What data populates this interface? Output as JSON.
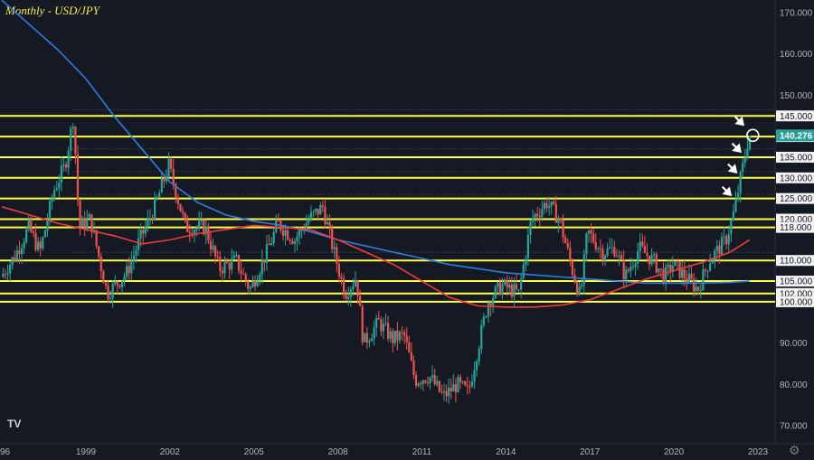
{
  "chart_data": {
    "type": "candlestick",
    "title": "Monthly - USD/JPY",
    "symbol": "USD/JPY",
    "interval": "Monthly",
    "ylim": [
      67,
      176
    ],
    "xlim": [
      1996.0,
      2024.0
    ],
    "x_ticks": [
      "96",
      "1999",
      "2002",
      "2005",
      "2008",
      "2011",
      "2014",
      "2017",
      "2020",
      "2023"
    ],
    "x_tick_years": [
      1996,
      1999,
      2002,
      2005,
      2008,
      2011,
      2014,
      2017,
      2020,
      2023
    ],
    "y_ticks": [
      70,
      80,
      90,
      150,
      160,
      170
    ],
    "y_tick_labels": [
      "70.000",
      "80.000",
      "90.000",
      "150.000",
      "160.000",
      "170.000"
    ],
    "levels": [
      145,
      140,
      135,
      130,
      125,
      120,
      118,
      110,
      105,
      102,
      100
    ],
    "level_labels": [
      "145.000",
      "140.000",
      "135.000",
      "130.000",
      "125.000",
      "120.000",
      "118.000",
      "110.000",
      "105.000",
      "102.000",
      "100.000"
    ],
    "current_price": 140.276,
    "current_price_label": "140.276",
    "price_path": [
      [
        1996.0,
        106
      ],
      [
        1996.5,
        111
      ],
      [
        1997.0,
        118
      ],
      [
        1997.4,
        112
      ],
      [
        1997.9,
        127
      ],
      [
        1998.3,
        133
      ],
      [
        1998.6,
        145
      ],
      [
        1998.8,
        118
      ],
      [
        1999.2,
        120
      ],
      [
        1999.8,
        102
      ],
      [
        2000.5,
        107
      ],
      [
        2000.9,
        114
      ],
      [
        2001.5,
        123
      ],
      [
        2002.0,
        133
      ],
      [
        2002.6,
        118
      ],
      [
        2003.3,
        118
      ],
      [
        2003.8,
        108
      ],
      [
        2004.4,
        110
      ],
      [
        2004.9,
        103
      ],
      [
        2005.5,
        112
      ],
      [
        2005.9,
        119
      ],
      [
        2006.5,
        115
      ],
      [
        2007.0,
        120
      ],
      [
        2007.5,
        123
      ],
      [
        2007.9,
        112
      ],
      [
        2008.3,
        102
      ],
      [
        2008.7,
        106
      ],
      [
        2008.95,
        90
      ],
      [
        2009.5,
        95
      ],
      [
        2010.0,
        91
      ],
      [
        2010.4,
        92
      ],
      [
        2010.8,
        81
      ],
      [
        2011.3,
        82
      ],
      [
        2011.8,
        77
      ],
      [
        2012.3,
        80
      ],
      [
        2012.7,
        78
      ],
      [
        2012.95,
        86
      ],
      [
        2013.4,
        100
      ],
      [
        2013.9,
        104
      ],
      [
        2014.5,
        102
      ],
      [
        2014.95,
        120
      ],
      [
        2015.5,
        124
      ],
      [
        2015.95,
        120
      ],
      [
        2016.4,
        108
      ],
      [
        2016.7,
        101
      ],
      [
        2016.95,
        117
      ],
      [
        2017.5,
        112
      ],
      [
        2017.95,
        113
      ],
      [
        2018.3,
        106
      ],
      [
        2018.8,
        113
      ],
      [
        2019.3,
        110
      ],
      [
        2019.7,
        106
      ],
      [
        2020.0,
        109
      ],
      [
        2020.3,
        107
      ],
      [
        2020.9,
        103
      ],
      [
        2021.3,
        110
      ],
      [
        2021.9,
        115
      ],
      [
        2022.2,
        122
      ],
      [
        2022.45,
        131
      ],
      [
        2022.6,
        136
      ],
      [
        2022.72,
        140.3
      ]
    ],
    "series": [
      {
        "values": [
          [
            1996.0,
            173
          ],
          [
            1997.0,
            167
          ],
          [
            1998.0,
            161
          ],
          [
            1999.0,
            154
          ],
          [
            2000.0,
            145
          ],
          [
            2001.0,
            137
          ],
          [
            2002.0,
            129
          ],
          [
            2003.0,
            124
          ],
          [
            2004.0,
            121
          ],
          [
            2005.0,
            119.5
          ],
          [
            2006.0,
            118.5
          ],
          [
            2007.0,
            117
          ],
          [
            2008.0,
            115
          ],
          [
            2009.0,
            113.5
          ],
          [
            2010.0,
            112
          ],
          [
            2011.0,
            110.5
          ],
          [
            2012.0,
            109
          ],
          [
            2013.0,
            108
          ],
          [
            2014.0,
            107
          ],
          [
            2015.0,
            106.5
          ],
          [
            2016.0,
            106
          ],
          [
            2017.0,
            105.5
          ],
          [
            2018.0,
            105
          ],
          [
            2019.0,
            104.5
          ],
          [
            2020.0,
            104.5
          ],
          [
            2021.0,
            104.5
          ],
          [
            2022.0,
            104.7
          ],
          [
            2022.7,
            105
          ]
        ]
      },
      {
        "values": [
          [
            1996.0,
            123
          ],
          [
            1997.0,
            121
          ],
          [
            1998.0,
            119
          ],
          [
            1999.0,
            117.5
          ],
          [
            2000.0,
            116
          ],
          [
            2001.0,
            114
          ],
          [
            2002.0,
            115
          ],
          [
            2003.0,
            116.5
          ],
          [
            2004.0,
            117.5
          ],
          [
            2005.0,
            118.5
          ],
          [
            2006.0,
            118
          ],
          [
            2007.0,
            117.5
          ],
          [
            2008.0,
            115
          ],
          [
            2009.0,
            112
          ],
          [
            2010.0,
            109
          ],
          [
            2011.0,
            105
          ],
          [
            2012.0,
            101
          ],
          [
            2013.0,
            99
          ],
          [
            2014.0,
            98.7
          ],
          [
            2015.0,
            98.7
          ],
          [
            2016.0,
            99.2
          ],
          [
            2017.0,
            100.5
          ],
          [
            2018.0,
            103
          ],
          [
            2019.0,
            105.5
          ],
          [
            2020.0,
            107.5
          ],
          [
            2021.0,
            109.5
          ],
          [
            2022.0,
            112
          ],
          [
            2022.7,
            115
          ]
        ]
      }
    ]
  },
  "ui": {
    "logo_label": "TV",
    "settings_icon": "gear-icon",
    "colors": {
      "background": "#151924",
      "level": "#ffff3c",
      "up_candle": "#26a69a",
      "down_candle": "#ef5350",
      "ma_blue": "#2f7de1",
      "ma_red": "#ef3b3b",
      "current_price_bg": "#2aa198"
    }
  }
}
